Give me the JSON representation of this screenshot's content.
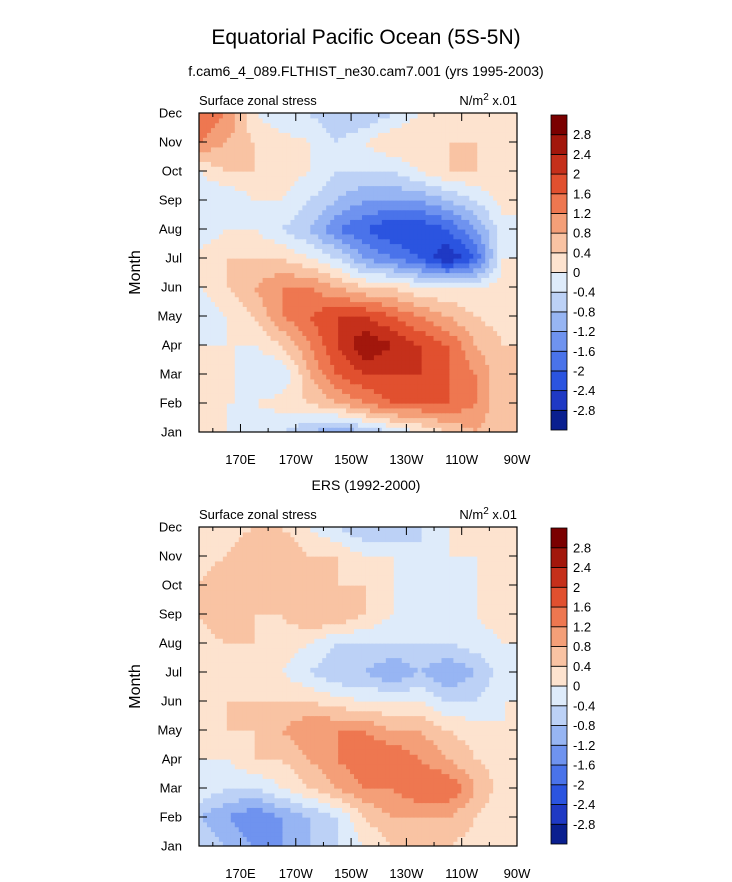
{
  "figure": {
    "title": "Equatorial Pacific Ocean (5S-5N)"
  },
  "colors": {
    "levels_palette": [
      "#0a1f8f",
      "#1f39c4",
      "#2b54e0",
      "#4a73ea",
      "#6f93ef",
      "#97b5f3",
      "#bcd1f6",
      "#deebfa",
      "#fde3cf",
      "#f9c3a3",
      "#f49f78",
      "#ee7750",
      "#e1502f",
      "#c5301b",
      "#a2170c",
      "#7a0000"
    ]
  },
  "chart_data": [
    {
      "type": "heatmap",
      "title": "f.cam6_4_089.FLTHIST_ne30.cam7.001 (yrs 1995-2003)",
      "left_label": "Surface zonal stress",
      "right_label": "N/m",
      "right_label_sup": "2",
      "right_label_suffix": " x.01",
      "ylabel": "Month",
      "x_ticks": [
        "170E",
        "170W",
        "150W",
        "130W",
        "110W",
        "90W"
      ],
      "x_tick_lon": [
        170,
        190,
        210,
        230,
        250,
        270
      ],
      "xlim": [
        155,
        270
      ],
      "y_ticks": [
        "Jan",
        "Feb",
        "Mar",
        "Apr",
        "May",
        "Jun",
        "Jul",
        "Aug",
        "Sep",
        "Oct",
        "Nov",
        "Dec"
      ],
      "colorbar": {
        "levels": [
          -2.8,
          -2.4,
          -2,
          -1.6,
          -1.2,
          -0.8,
          -0.4,
          0,
          0.4,
          0.8,
          1.2,
          1.6,
          2,
          2.4,
          2.8
        ],
        "labels": [
          "2.8",
          "2.4",
          "2",
          "1.6",
          "1.2",
          "0.8",
          "0.4",
          "0",
          "-0.4",
          "-0.8",
          "-1.2",
          "-1.6",
          "-2",
          "-2.4",
          "-2.8"
        ]
      },
      "lon": [
        155,
        165,
        175,
        185,
        195,
        205,
        215,
        225,
        235,
        245,
        255,
        265
      ],
      "months": [
        "Jan",
        "Feb",
        "Mar",
        "Apr",
        "May",
        "Jun",
        "Jul",
        "Aug",
        "Sep",
        "Oct",
        "Nov",
        "Dec"
      ],
      "values": [
        [
          0.4,
          0.0,
          -0.4,
          -0.4,
          -0.8,
          -1.2,
          -0.8,
          -0.4,
          0.0,
          0.4,
          0.8,
          0.4
        ],
        [
          0.2,
          0.0,
          0.0,
          0.2,
          0.4,
          0.8,
          1.2,
          1.6,
          1.6,
          1.6,
          1.2,
          0.4
        ],
        [
          0.2,
          0.2,
          -0.4,
          -0.4,
          0.8,
          1.6,
          2.0,
          2.0,
          2.0,
          1.6,
          1.2,
          0.4
        ],
        [
          0.0,
          0.0,
          0.0,
          0.4,
          1.2,
          2.0,
          2.8,
          2.4,
          2.0,
          1.6,
          0.8,
          0.4
        ],
        [
          -0.4,
          0.0,
          0.4,
          1.2,
          1.6,
          2.0,
          2.0,
          1.6,
          1.2,
          0.8,
          0.4,
          0.2
        ],
        [
          0.0,
          0.4,
          0.8,
          1.2,
          1.2,
          0.8,
          0.4,
          0.4,
          0.0,
          0.0,
          0.0,
          0.2
        ],
        [
          0.2,
          0.4,
          0.4,
          0.4,
          0.0,
          -0.4,
          -1.2,
          -1.6,
          -2.0,
          -2.8,
          -2.0,
          0.0
        ],
        [
          -0.4,
          0.0,
          0.0,
          -0.4,
          -0.8,
          -1.6,
          -2.0,
          -2.4,
          -2.4,
          -2.0,
          -1.2,
          -0.2
        ],
        [
          -0.4,
          -0.4,
          0.0,
          0.0,
          -0.4,
          -0.8,
          -1.2,
          -1.2,
          -1.2,
          -0.8,
          -0.4,
          0.2
        ],
        [
          0.0,
          0.4,
          0.4,
          0.2,
          0.0,
          -0.4,
          -0.4,
          -0.4,
          0.0,
          0.4,
          0.4,
          0.4
        ],
        [
          1.2,
          0.8,
          0.4,
          0.2,
          0.0,
          -0.4,
          0.0,
          0.4,
          0.4,
          0.4,
          0.4,
          0.2
        ],
        [
          1.6,
          1.2,
          0.0,
          -0.4,
          -0.4,
          -0.8,
          -0.8,
          -0.4,
          0.0,
          0.2,
          0.4,
          0.2
        ]
      ]
    },
    {
      "type": "heatmap",
      "title": "ERS (1992-2000)",
      "left_label": "Surface zonal stress",
      "right_label": "N/m",
      "right_label_sup": "2",
      "right_label_suffix": " x.01",
      "ylabel": "Month",
      "x_ticks": [
        "170E",
        "170W",
        "150W",
        "130W",
        "110W",
        "90W"
      ],
      "x_tick_lon": [
        170,
        190,
        210,
        230,
        250,
        270
      ],
      "xlim": [
        155,
        270
      ],
      "y_ticks": [
        "Jan",
        "Feb",
        "Mar",
        "Apr",
        "May",
        "Jun",
        "Jul",
        "Aug",
        "Sep",
        "Oct",
        "Nov",
        "Dec"
      ],
      "colorbar": {
        "levels": [
          -2.8,
          -2.4,
          -2,
          -1.6,
          -1.2,
          -0.8,
          -0.4,
          0,
          0.4,
          0.8,
          1.2,
          1.6,
          2,
          2.4,
          2.8
        ],
        "labels": [
          "2.8",
          "2.4",
          "2",
          "1.6",
          "1.2",
          "0.8",
          "0.4",
          "0",
          "-0.4",
          "-0.8",
          "-1.2",
          "-1.6",
          "-2",
          "-2.4",
          "-2.8"
        ]
      },
      "lon": [
        155,
        165,
        175,
        185,
        195,
        205,
        215,
        225,
        235,
        245,
        255,
        265
      ],
      "months": [
        "Jan",
        "Feb",
        "Mar",
        "Apr",
        "May",
        "Jun",
        "Jul",
        "Aug",
        "Sep",
        "Oct",
        "Nov",
        "Dec"
      ],
      "values": [
        [
          -0.4,
          -0.8,
          -1.2,
          -1.2,
          -0.8,
          -0.4,
          0.0,
          0.4,
          0.4,
          0.4,
          0.2,
          0.0
        ],
        [
          -0.8,
          -1.2,
          -1.6,
          -1.2,
          -0.8,
          -0.4,
          0.4,
          0.8,
          0.8,
          0.8,
          0.4,
          0.0
        ],
        [
          0.0,
          -0.4,
          -0.4,
          0.0,
          0.4,
          0.8,
          1.2,
          1.2,
          1.6,
          1.6,
          0.8,
          0.2
        ],
        [
          0.0,
          0.0,
          0.4,
          0.4,
          0.8,
          1.2,
          1.6,
          1.6,
          1.2,
          0.8,
          0.4,
          0.2
        ],
        [
          0.0,
          0.4,
          0.4,
          0.8,
          1.2,
          1.2,
          1.2,
          0.8,
          0.8,
          0.4,
          0.2,
          0.0
        ],
        [
          0.2,
          0.4,
          0.4,
          0.4,
          0.4,
          0.2,
          0.0,
          0.0,
          0.0,
          -0.4,
          -0.4,
          0.0
        ],
        [
          0.0,
          0.0,
          0.0,
          0.0,
          -0.4,
          -0.8,
          -0.8,
          -1.2,
          -0.8,
          -1.2,
          -0.8,
          -0.2
        ],
        [
          0.2,
          0.4,
          0.4,
          0.2,
          0.0,
          -0.4,
          -0.4,
          -0.4,
          -0.4,
          -0.4,
          -0.2,
          0.0
        ],
        [
          0.4,
          0.8,
          0.4,
          0.4,
          0.8,
          0.8,
          0.4,
          0.0,
          0.0,
          0.0,
          0.0,
          0.2
        ],
        [
          0.4,
          0.8,
          0.4,
          0.4,
          0.4,
          0.4,
          0.4,
          0.0,
          -0.4,
          -0.4,
          0.0,
          0.2
        ],
        [
          0.2,
          0.4,
          0.8,
          0.8,
          0.4,
          0.4,
          0.0,
          0.0,
          -0.4,
          0.0,
          0.0,
          0.2
        ],
        [
          0.0,
          0.2,
          0.4,
          0.4,
          0.0,
          -0.4,
          -0.8,
          -0.8,
          -0.4,
          0.0,
          0.2,
          0.2
        ]
      ]
    }
  ]
}
